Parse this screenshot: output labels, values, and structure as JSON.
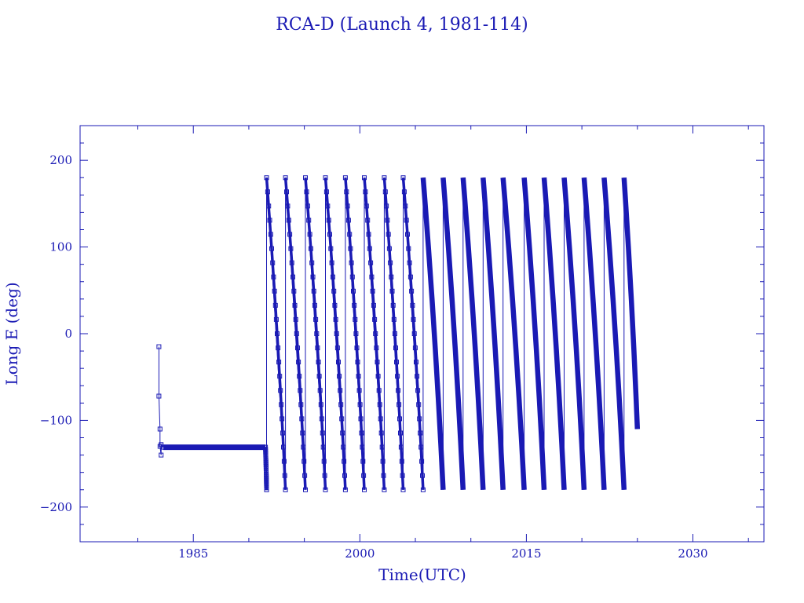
{
  "chart_data": {
    "type": "line",
    "title": "RCA-D (Launch 4, 1981-114)",
    "xlabel": "Time(UTC)",
    "ylabel": "Long E (deg)",
    "xlim": [
      1974.8,
      2036.4
    ],
    "ylim": [
      -240,
      240
    ],
    "xticks": [
      1985,
      2000,
      2015,
      2030
    ],
    "yticks": [
      -200,
      -100,
      0,
      100,
      200
    ],
    "grid": false,
    "color": "#1a1ab4",
    "series": [
      {
        "name": "",
        "segments": [
          {
            "kind": "drift_start",
            "points": [
              [
                1981.9,
                -15
              ],
              [
                1981.9,
                -72
              ],
              [
                1982.0,
                -110
              ],
              [
                1982.0,
                -130
              ],
              [
                1982.1,
                -140
              ],
              [
                1982.1,
                -128
              ],
              [
                1982.3,
                -131
              ]
            ]
          },
          {
            "kind": "station",
            "points": [
              [
                1982.3,
                -131
              ],
              [
                1985.0,
                -131
              ],
              [
                1988.0,
                -131
              ],
              [
                1991.5,
                -131
              ]
            ]
          },
          {
            "kind": "wrap_cycles",
            "points": [
              [
                1991.5,
                -131
              ],
              [
                1991.6,
                -180
              ],
              [
                1991.6,
                180
              ],
              [
                1993.3,
                -180
              ],
              [
                1993.3,
                180
              ],
              [
                1995.1,
                -180
              ],
              [
                1995.1,
                180
              ],
              [
                1996.9,
                -180
              ],
              [
                1996.9,
                180
              ],
              [
                1998.7,
                -180
              ],
              [
                1998.7,
                180
              ],
              [
                2000.4,
                -180
              ],
              [
                2000.4,
                180
              ],
              [
                2002.2,
                -180
              ],
              [
                2002.2,
                180
              ],
              [
                2003.9,
                -180
              ],
              [
                2003.9,
                180
              ],
              [
                2005.7,
                -180
              ],
              [
                2005.7,
                180
              ],
              [
                2007.5,
                -180
              ],
              [
                2007.5,
                180
              ],
              [
                2009.3,
                -180
              ],
              [
                2009.3,
                180
              ],
              [
                2011.1,
                -180
              ],
              [
                2011.1,
                180
              ],
              [
                2012.9,
                -180
              ],
              [
                2012.9,
                180
              ],
              [
                2014.8,
                -180
              ],
              [
                2014.8,
                180
              ],
              [
                2016.6,
                -180
              ],
              [
                2016.6,
                180
              ],
              [
                2018.4,
                -180
              ],
              [
                2018.4,
                180
              ],
              [
                2020.2,
                -180
              ],
              [
                2020.2,
                180
              ],
              [
                2022.0,
                -180
              ],
              [
                2022.0,
                180
              ],
              [
                2023.8,
                -180
              ],
              [
                2023.8,
                180
              ],
              [
                2025.0,
                -110
              ]
            ]
          }
        ]
      }
    ]
  }
}
